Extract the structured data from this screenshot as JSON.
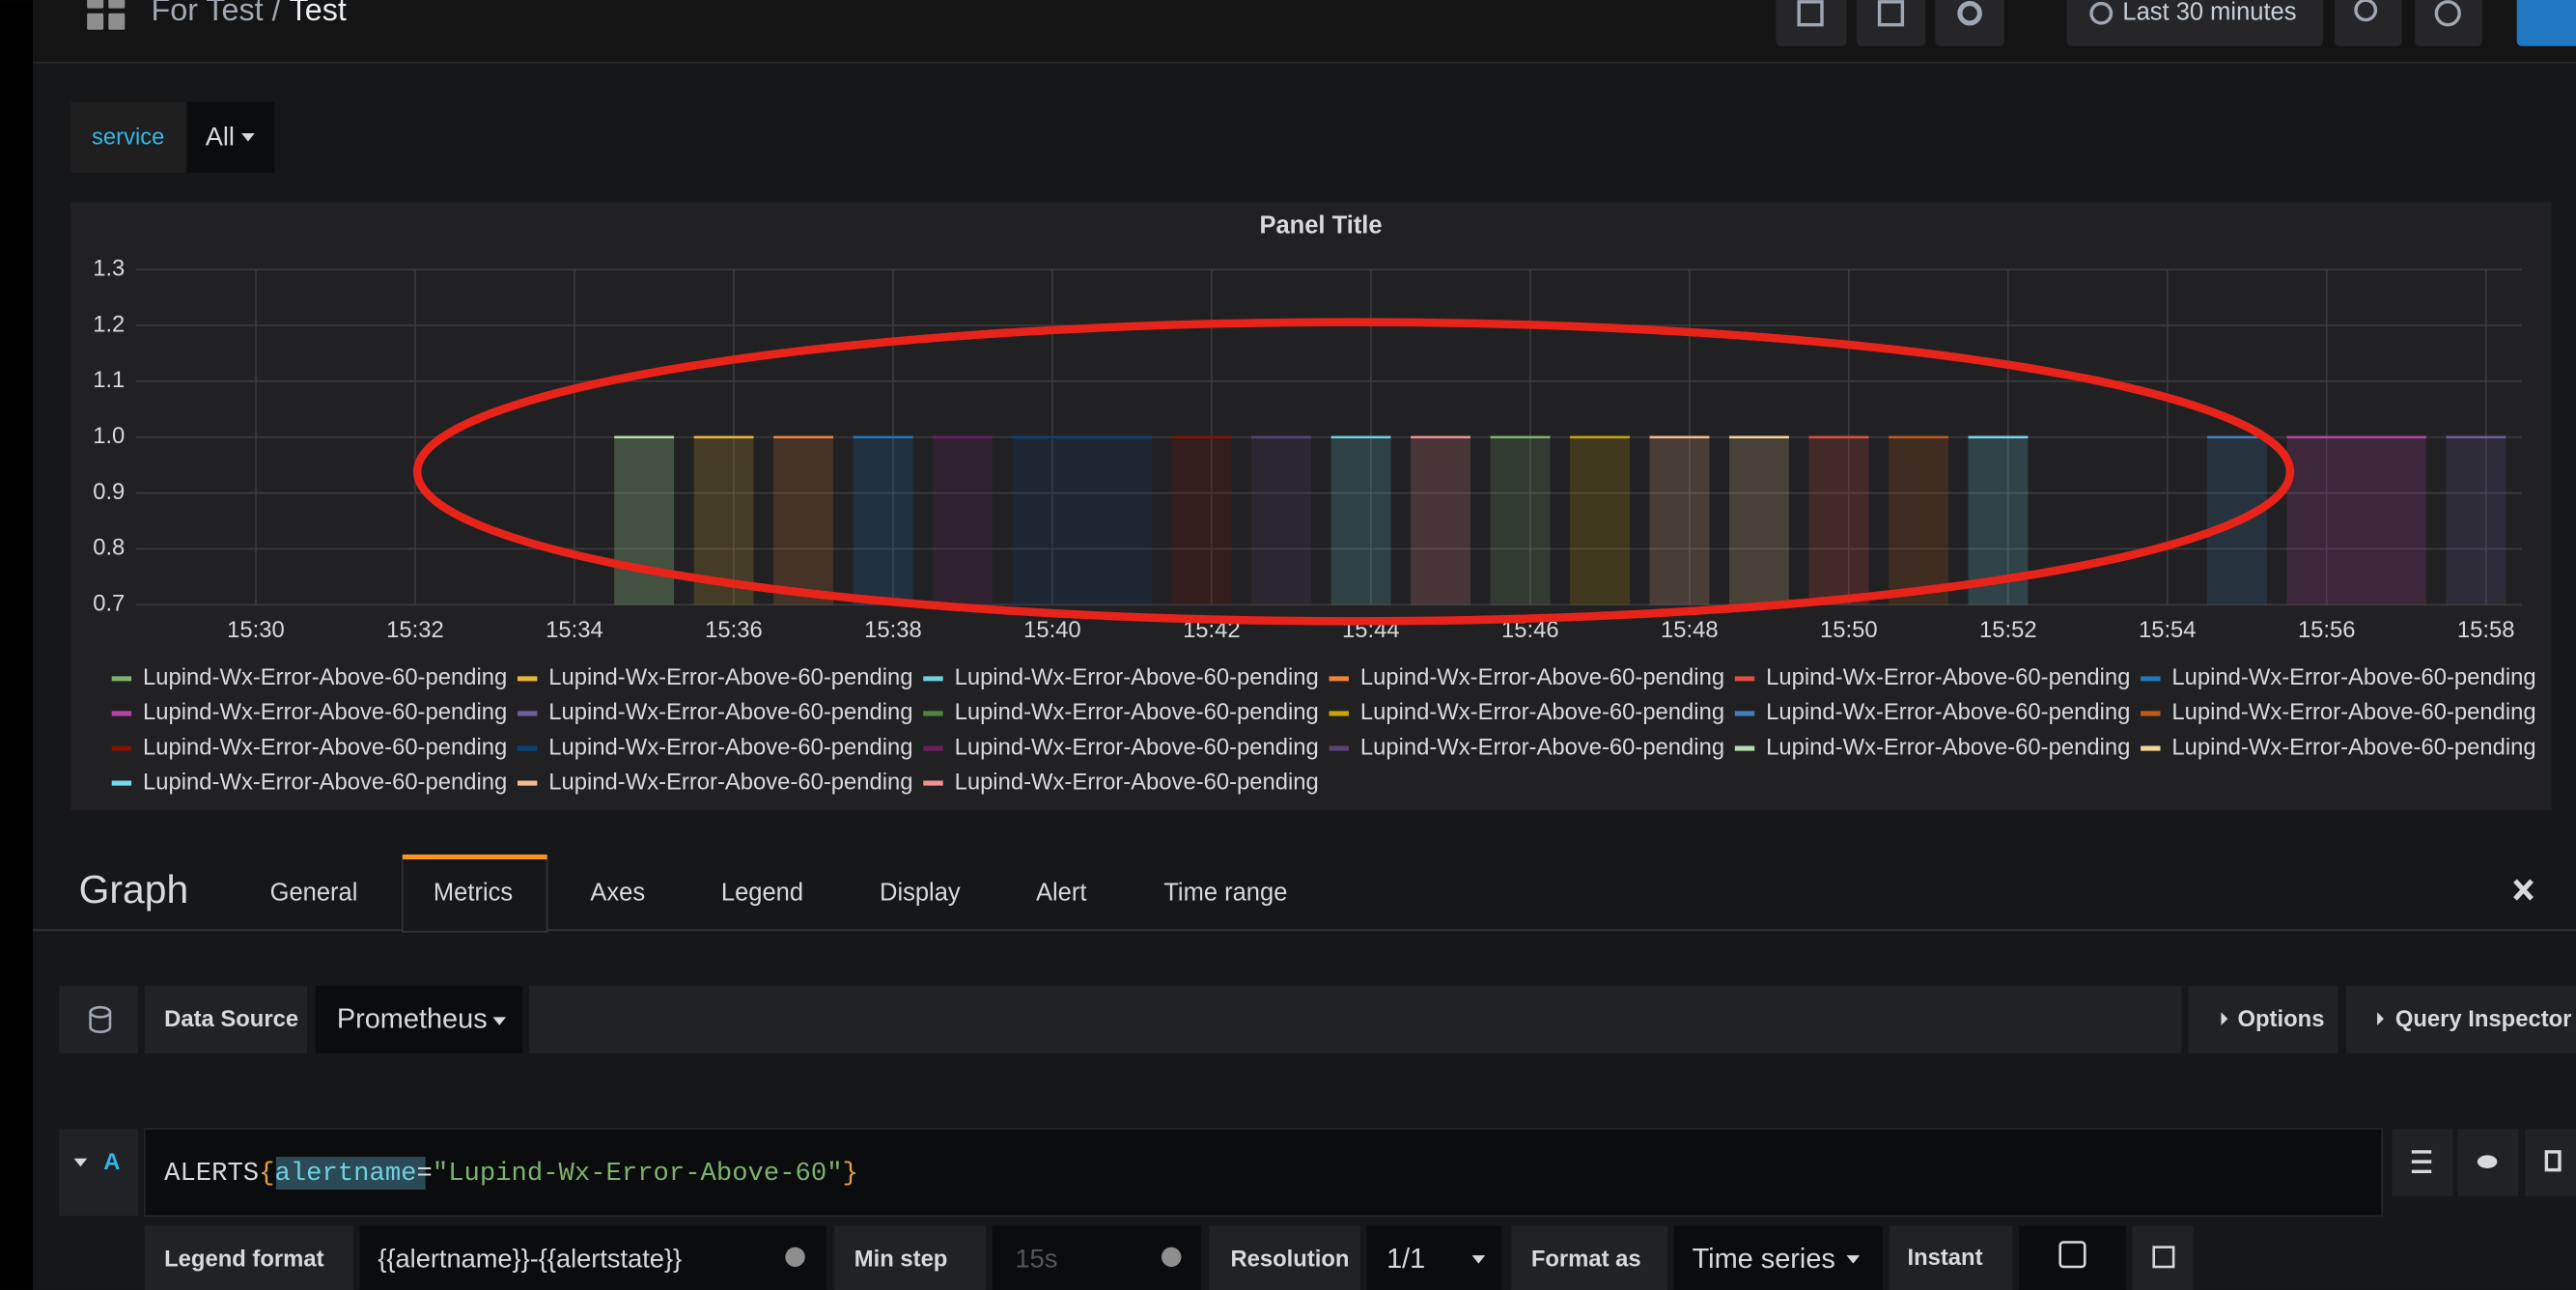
{
  "header": {
    "folder": "For Test",
    "separator": "/",
    "dashboard": "Test",
    "time_range": "Last 30 minutes"
  },
  "variables": {
    "label": "service",
    "value": "All"
  },
  "chart_data": {
    "type": "area",
    "title": "Panel Title",
    "xlim": [
      928.5,
      958.45
    ],
    "xticks": [
      {
        "value": 930,
        "label": "15:30"
      },
      {
        "value": 932,
        "label": "15:32"
      },
      {
        "value": 934,
        "label": "15:34"
      },
      {
        "value": 936,
        "label": "15:36"
      },
      {
        "value": 938,
        "label": "15:38"
      },
      {
        "value": 940,
        "label": "15:40"
      },
      {
        "value": 942,
        "label": "15:42"
      },
      {
        "value": 944,
        "label": "15:44"
      },
      {
        "value": 946,
        "label": "15:46"
      },
      {
        "value": 948,
        "label": "15:48"
      },
      {
        "value": 950,
        "label": "15:50"
      },
      {
        "value": 952,
        "label": "15:52"
      },
      {
        "value": 954,
        "label": "15:54"
      },
      {
        "value": 956,
        "label": "15:56"
      },
      {
        "value": 958,
        "label": "15:58"
      }
    ],
    "ylim": [
      0.7,
      1.3
    ],
    "yticks": [
      0.7,
      0.8,
      0.9,
      {
        "value": 1,
        "label": "1.0"
      },
      1.1,
      1.2,
      1.3
    ],
    "grid": true,
    "series": [
      {
        "name": "Lupind-Wx-Error-Above-60-pending",
        "color": "#7eb26d",
        "x": [
          945.5,
          946.25
        ],
        "values": [
          1,
          1
        ]
      },
      {
        "name": "Lupind-Wx-Error-Above-60-pending",
        "color": "#eab839",
        "x": [
          935.5,
          936.25
        ],
        "values": [
          1,
          1
        ]
      },
      {
        "name": "Lupind-Wx-Error-Above-60-pending",
        "color": "#6ed0e0",
        "x": [
          943.5,
          944.25
        ],
        "values": [
          1,
          1
        ]
      },
      {
        "name": "Lupind-Wx-Error-Above-60-pending",
        "color": "#ef843c",
        "x": [
          936.5,
          937.25
        ],
        "values": [
          1,
          1
        ]
      },
      {
        "name": "Lupind-Wx-Error-Above-60-pending",
        "color": "#e24d42",
        "x": [
          949.5,
          950.25
        ],
        "values": [
          1,
          1
        ]
      },
      {
        "name": "Lupind-Wx-Error-Above-60-pending",
        "color": "#1f78c1",
        "x": [
          937.5,
          938.25
        ],
        "values": [
          1,
          1
        ]
      },
      {
        "name": "Lupind-Wx-Error-Above-60-pending",
        "color": "#ba43a9",
        "x": [
          955.5,
          957.25
        ],
        "values": [
          1,
          1
        ]
      },
      {
        "name": "Lupind-Wx-Error-Above-60-pending",
        "color": "#705da0",
        "x": [
          957.5,
          958.25
        ],
        "values": [
          1,
          1
        ]
      },
      {
        "name": "Lupind-Wx-Error-Above-60-pending",
        "color": "#508642",
        "x": [
          934.5,
          935.25
        ],
        "values": [
          1,
          1
        ]
      },
      {
        "name": "Lupind-Wx-Error-Above-60-pending",
        "color": "#cca300",
        "x": [
          946.5,
          947.25
        ],
        "values": [
          1,
          1
        ]
      },
      {
        "name": "Lupind-Wx-Error-Above-60-pending",
        "color": "#447ebc",
        "x": [
          954.5,
          955.25
        ],
        "values": [
          1,
          1
        ]
      },
      {
        "name": "Lupind-Wx-Error-Above-60-pending",
        "color": "#c15c17",
        "x": [
          950.5,
          951.25
        ],
        "values": [
          1,
          1
        ]
      },
      {
        "name": "Lupind-Wx-Error-Above-60-pending",
        "color": "#890f02",
        "x": [
          941.5,
          942.25
        ],
        "values": [
          1,
          1
        ]
      },
      {
        "name": "Lupind-Wx-Error-Above-60-pending",
        "color": "#0a437c",
        "x": [
          939.5,
          941.25
        ],
        "values": [
          1,
          1
        ]
      },
      {
        "name": "Lupind-Wx-Error-Above-60-pending",
        "color": "#6d1f62",
        "x": [
          938.5,
          939.25
        ],
        "values": [
          1,
          1
        ]
      },
      {
        "name": "Lupind-Wx-Error-Above-60-pending",
        "color": "#584477",
        "x": [
          942.5,
          943.25
        ],
        "values": [
          1,
          1
        ]
      },
      {
        "name": "Lupind-Wx-Error-Above-60-pending",
        "color": "#b7dbab",
        "x": [
          934.5,
          935.25
        ],
        "values": [
          1,
          1
        ]
      },
      {
        "name": "Lupind-Wx-Error-Above-60-pending",
        "color": "#f4d598",
        "x": [
          948.5,
          949.25
        ],
        "values": [
          1,
          1
        ]
      },
      {
        "name": "Lupind-Wx-Error-Above-60-pending",
        "color": "#70dbed",
        "x": [
          951.5,
          952.25
        ],
        "values": [
          1,
          1
        ]
      },
      {
        "name": "Lupind-Wx-Error-Above-60-pending",
        "color": "#f9ba8f",
        "x": [
          947.5,
          948.25
        ],
        "values": [
          1,
          1
        ]
      },
      {
        "name": "Lupind-Wx-Error-Above-60-pending",
        "color": "#f29191",
        "x": [
          944.5,
          945.25
        ],
        "values": [
          1,
          1
        ]
      }
    ]
  },
  "editor": {
    "title": "Graph",
    "tabs": [
      "General",
      "Metrics",
      "Axes",
      "Legend",
      "Display",
      "Alert",
      "Time range"
    ],
    "data_source_label": "Data Source",
    "data_source": "Prometheus",
    "options": "Options",
    "query_inspector": "Query Inspector",
    "query": {
      "ref_id": "A",
      "expr": [
        "ALERTS",
        "{",
        "alertname",
        "=",
        "\"Lupind-Wx-Error-Above-60\"",
        "}"
      ]
    },
    "legend_format_label": "Legend format",
    "legend_format": "{{alertname}}-{{alertstate}}",
    "min_step_label": "Min step",
    "min_step_placeholder": "15s",
    "resolution_label": "Resolution",
    "resolution": "1/1",
    "format_as_label": "Format as",
    "format_as": "Time series",
    "instant_label": "Instant"
  }
}
